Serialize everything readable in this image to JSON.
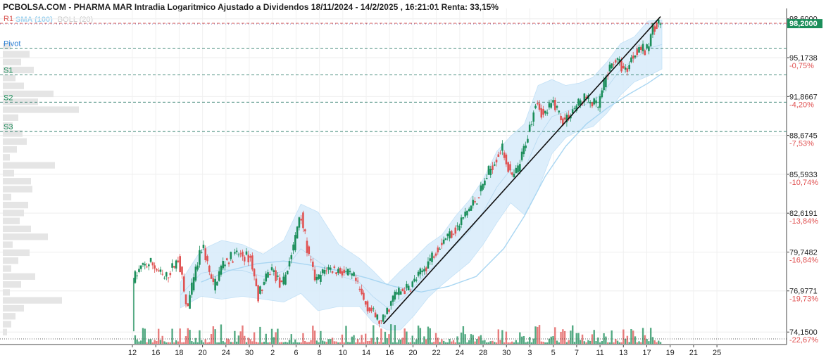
{
  "header": {
    "title": "PCBOLSA.COM - PHARMA MAR Intradia Logaritmico Ajustado a Dividendos 18/11/2024 - 14/2/2025 , 16:21:01 Renta: 33,15%",
    "legend_sma": "SMA (100)",
    "legend_boll": "BOLL (20)"
  },
  "colors": {
    "up": "#1b8e5a",
    "down": "#e05252",
    "bollinger_fill": "#d8ecfb",
    "sma": "#a9d6f2",
    "resistance": "#d9534f",
    "pivot": "#2a7fd4",
    "support": "#1b8e5a",
    "trendline": "#111111",
    "last_price_bg": "#1b8e5a"
  },
  "chart_data": {
    "type": "candlestick",
    "scale": "log",
    "ylim": [
      73.5,
      98.9
    ],
    "y_ticks": [
      {
        "value": 98.6,
        "label": "98,6000",
        "pct": ""
      },
      {
        "value": 95.1738,
        "label": "95,1738",
        "pct": "-0,75%"
      },
      {
        "value": 91.8667,
        "label": "91,8667",
        "pct": "-4,20%"
      },
      {
        "value": 88.6745,
        "label": "88,6745",
        "pct": "-7,53%"
      },
      {
        "value": 85.5933,
        "label": "85,5933",
        "pct": "-10,74%"
      },
      {
        "value": 82.6191,
        "label": "82,6191",
        "pct": "-13,84%"
      },
      {
        "value": 79.7482,
        "label": "79,7482",
        "pct": "-16,84%"
      },
      {
        "value": 76.9771,
        "label": "76,9771",
        "pct": "-19,73%"
      },
      {
        "value": 74.15,
        "label": "74,1500",
        "pct": "-22,67%"
      }
    ],
    "last_price": {
      "value": 98.2,
      "label": "98,2000"
    },
    "x_axis": {
      "range": [
        0,
        94
      ],
      "ticks": [
        {
          "i": 0,
          "label": "12"
        },
        {
          "i": 3.4,
          "label": "16"
        },
        {
          "i": 6.8,
          "label": "18"
        },
        {
          "i": 10.2,
          "label": "20"
        },
        {
          "i": 13.6,
          "label": "24"
        },
        {
          "i": 17,
          "label": "30"
        },
        {
          "i": 20.4,
          "label": "2"
        },
        {
          "i": 23.8,
          "label": "6"
        },
        {
          "i": 27.2,
          "label": "8"
        },
        {
          "i": 30.6,
          "label": "10"
        },
        {
          "i": 34,
          "label": "14"
        },
        {
          "i": 37.4,
          "label": "16"
        },
        {
          "i": 40.8,
          "label": "20"
        },
        {
          "i": 44.2,
          "label": "22"
        },
        {
          "i": 47.6,
          "label": "24"
        },
        {
          "i": 51,
          "label": "28"
        },
        {
          "i": 54.4,
          "label": "30"
        },
        {
          "i": 57.8,
          "label": "3"
        },
        {
          "i": 61.2,
          "label": "5"
        },
        {
          "i": 64.6,
          "label": "7"
        },
        {
          "i": 68,
          "label": "11"
        },
        {
          "i": 71.4,
          "label": "13"
        },
        {
          "i": 74.8,
          "label": "17"
        },
        {
          "i": 78.2,
          "label": "19"
        },
        {
          "i": 81.6,
          "label": "21"
        },
        {
          "i": 85,
          "label": "25"
        }
      ]
    },
    "levels": [
      {
        "name": "R1",
        "value": 98.2,
        "kind": "resistance"
      },
      {
        "name": "Pivot",
        "value": 96.0,
        "kind": "pivot"
      },
      {
        "name": "S1",
        "value": 93.7,
        "kind": "support"
      },
      {
        "name": "S2",
        "value": 91.4,
        "kind": "support"
      },
      {
        "name": "S3",
        "value": 89.0,
        "kind": "support"
      }
    ],
    "price_path": [
      [
        0,
        74.3
      ],
      [
        0.4,
        77.8
      ],
      [
        1.5,
        78.6
      ],
      [
        3,
        79.0
      ],
      [
        5,
        77.8
      ],
      [
        7,
        79.3
      ],
      [
        8.2,
        75.6
      ],
      [
        9.6,
        78.6
      ],
      [
        10.5,
        80.3
      ],
      [
        12,
        77.2
      ],
      [
        13.5,
        79.0
      ],
      [
        15.5,
        79.6
      ],
      [
        17.5,
        79.3
      ],
      [
        18.5,
        76.6
      ],
      [
        20.5,
        78.6
      ],
      [
        22,
        77.2
      ],
      [
        23.8,
        80.3
      ],
      [
        24.7,
        82.9
      ],
      [
        25.8,
        79.6
      ],
      [
        27,
        77.6
      ],
      [
        28.5,
        78.6
      ],
      [
        30.5,
        78.4
      ],
      [
        32.5,
        77.9
      ],
      [
        34,
        76.2
      ],
      [
        35,
        75.6
      ],
      [
        36.5,
        74.7
      ],
      [
        38.5,
        76.8
      ],
      [
        40.5,
        77.2
      ],
      [
        42.5,
        78.4
      ],
      [
        44,
        79.6
      ],
      [
        45.5,
        80.7
      ],
      [
        47.5,
        81.5
      ],
      [
        49,
        82.8
      ],
      [
        50.5,
        83.8
      ],
      [
        52,
        85.7
      ],
      [
        54,
        87.7
      ],
      [
        55.5,
        85.2
      ],
      [
        56.5,
        86.2
      ],
      [
        58,
        89.2
      ],
      [
        59,
        91.8
      ],
      [
        60,
        90.2
      ],
      [
        61.5,
        91.4
      ],
      [
        63,
        89.8
      ],
      [
        64.5,
        90.9
      ],
      [
        66,
        91.8
      ],
      [
        68,
        91.0
      ],
      [
        69.2,
        93.6
      ],
      [
        70.4,
        95.1
      ],
      [
        72,
        94.0
      ],
      [
        73,
        95.3
      ],
      [
        74,
        96.2
      ],
      [
        75,
        95.6
      ],
      [
        76,
        97.9
      ],
      [
        76.8,
        98.2
      ]
    ],
    "bollinger": {
      "upper": [
        [
          7,
          77.6
        ],
        [
          10,
          79.9
        ],
        [
          13,
          80.6
        ],
        [
          16,
          80.3
        ],
        [
          19,
          79.6
        ],
        [
          22,
          80.6
        ],
        [
          24.5,
          83.3
        ],
        [
          27,
          82.7
        ],
        [
          30,
          80.3
        ],
        [
          33,
          79.3
        ],
        [
          35,
          78.4
        ],
        [
          37,
          77.4
        ],
        [
          39,
          78.4
        ],
        [
          41,
          79.3
        ],
        [
          43,
          80.3
        ],
        [
          45,
          81.0
        ],
        [
          47,
          82.4
        ],
        [
          49,
          83.6
        ],
        [
          51,
          85.2
        ],
        [
          53,
          87.4
        ],
        [
          55,
          88.6
        ],
        [
          57,
          89.6
        ],
        [
          59,
          92.8
        ],
        [
          61,
          93.3
        ],
        [
          63,
          92.8
        ],
        [
          65,
          93.0
        ],
        [
          67,
          93.5
        ],
        [
          69,
          94.8
        ],
        [
          71,
          96.4
        ],
        [
          73,
          97.0
        ],
        [
          75,
          98.4
        ],
        [
          77,
          98.5
        ]
      ],
      "lower": [
        [
          7,
          75.8
        ],
        [
          10,
          76.6
        ],
        [
          13,
          76.4
        ],
        [
          16,
          76.6
        ],
        [
          19,
          76.4
        ],
        [
          22,
          76.2
        ],
        [
          24.5,
          76.8
        ],
        [
          27,
          75.6
        ],
        [
          30,
          75.9
        ],
        [
          33,
          75.9
        ],
        [
          35,
          74.8
        ],
        [
          37,
          74.3
        ],
        [
          39,
          74.3
        ],
        [
          41,
          75.3
        ],
        [
          43,
          76.5
        ],
        [
          45,
          77.4
        ],
        [
          47,
          78.2
        ],
        [
          49,
          79.0
        ],
        [
          51,
          80.3
        ],
        [
          53,
          81.9
        ],
        [
          55,
          83.4
        ],
        [
          57,
          82.5
        ],
        [
          59,
          84.4
        ],
        [
          61,
          87.2
        ],
        [
          63,
          88.5
        ],
        [
          65,
          89.1
        ],
        [
          67,
          89.4
        ],
        [
          69,
          90.5
        ],
        [
          71,
          92.0
        ],
        [
          73,
          93.1
        ],
        [
          75,
          93.6
        ],
        [
          77,
          94.2
        ]
      ]
    },
    "sma_100": [
      [
        10,
        77.6
      ],
      [
        14,
        78.4
      ],
      [
        18,
        78.9
      ],
      [
        22,
        79.1
      ],
      [
        26,
        78.8
      ],
      [
        30,
        78.4
      ],
      [
        34,
        77.9
      ],
      [
        38,
        77.3
      ],
      [
        42,
        76.9
      ],
      [
        46,
        77.3
      ],
      [
        50,
        78.0
      ],
      [
        54,
        80.0
      ],
      [
        57,
        82.4
      ],
      [
        60,
        85.4
      ],
      [
        63,
        87.8
      ],
      [
        66,
        89.6
      ],
      [
        69,
        90.9
      ],
      [
        72,
        92.0
      ],
      [
        75,
        93.0
      ],
      [
        77,
        93.8
      ]
    ],
    "trendline": [
      [
        36.5,
        74.7
      ],
      [
        76.8,
        98.8
      ]
    ]
  }
}
